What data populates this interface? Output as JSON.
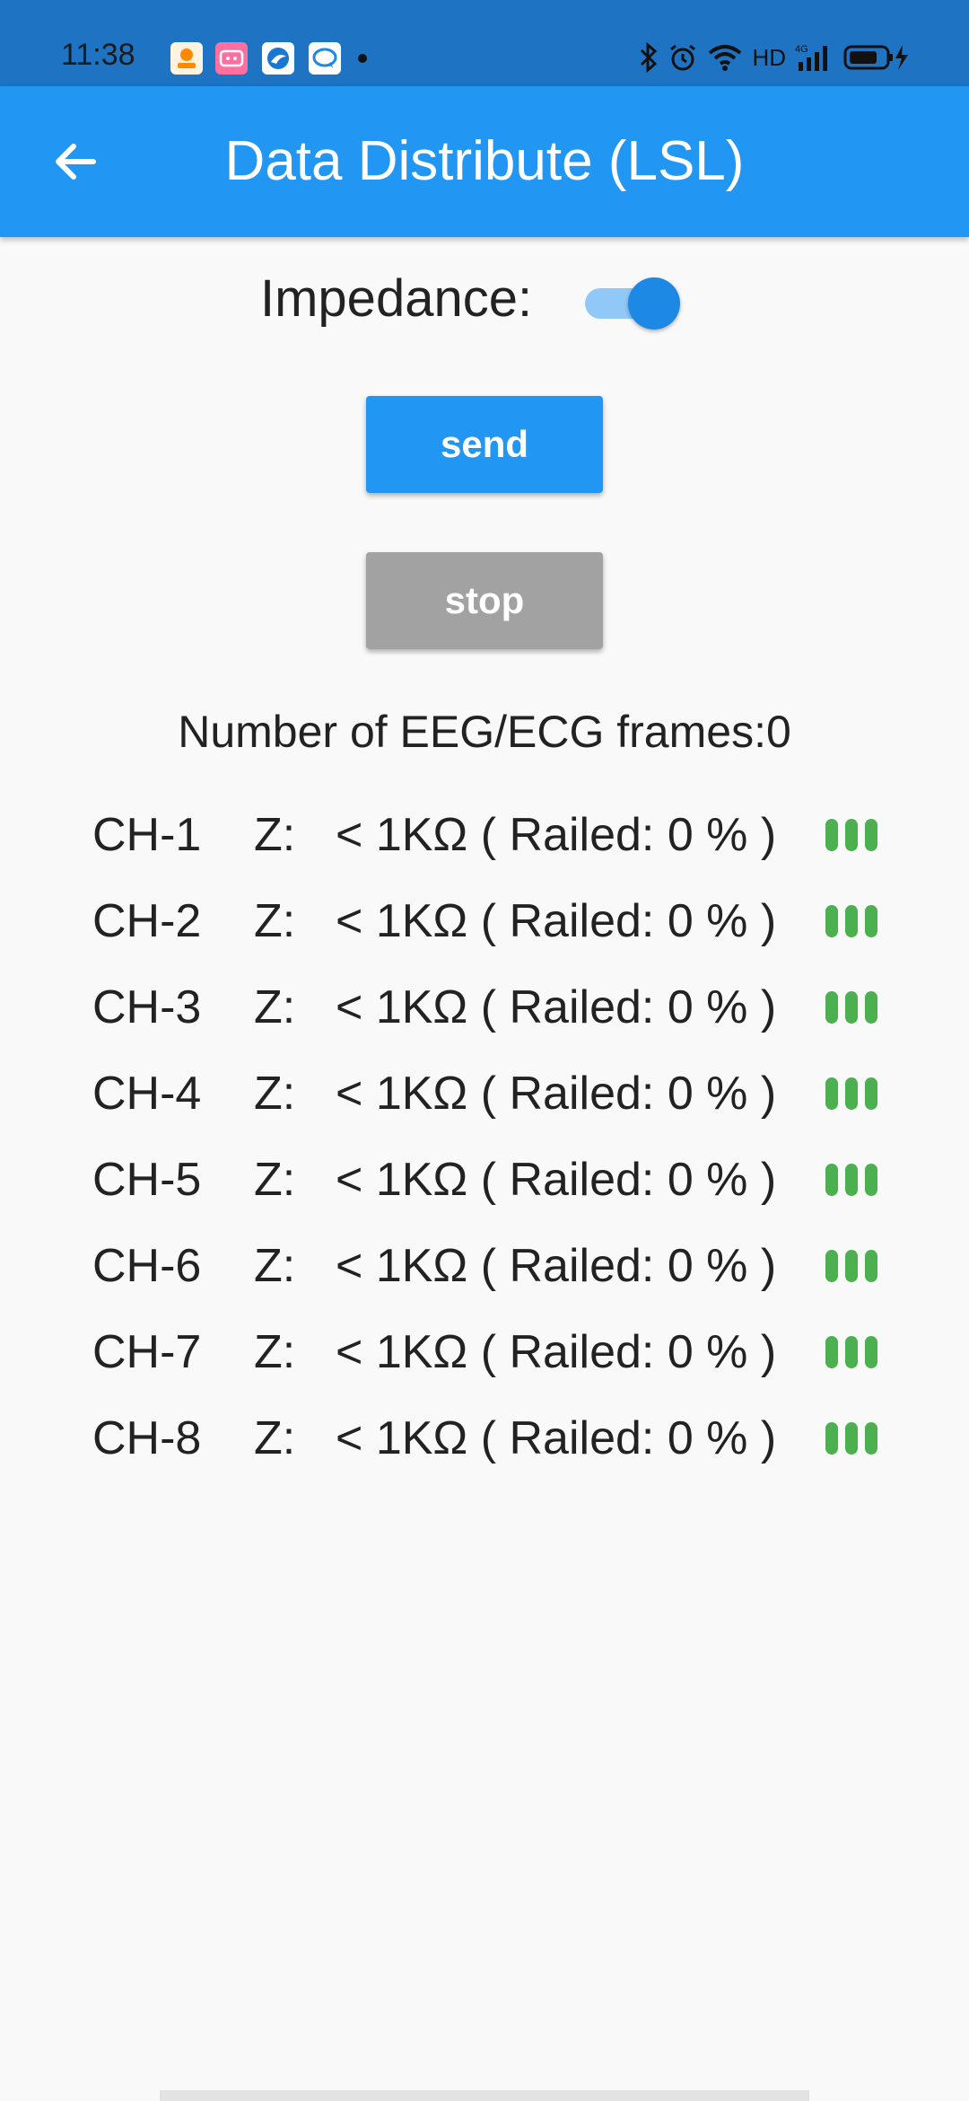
{
  "status_bar": {
    "time": "11:38",
    "network_label": "HD",
    "notification_icons": [
      "taobao-icon",
      "bilibili-icon",
      "browser-icon",
      "chat-icon"
    ],
    "system_icons": [
      "bluetooth-icon",
      "alarm-icon",
      "wifi-icon",
      "signal-4g-icon",
      "battery-charging-icon"
    ]
  },
  "app_bar": {
    "title": "Data Distribute (LSL)",
    "back_icon": "arrow-back-icon",
    "color": "#2196f3"
  },
  "impedance": {
    "label": "Impedance:",
    "enabled": true
  },
  "buttons": {
    "send_label": "send",
    "stop_label": "stop",
    "send_color": "#2196f3",
    "stop_color": "#a2a2a2"
  },
  "frames_text": "Number of EEG/ECG frames:0",
  "channels": [
    {
      "name": "CH-1",
      "z_label": "Z:",
      "value": "< 1KΩ ( Railed: 0 % )",
      "signal_bars": 3
    },
    {
      "name": "CH-2",
      "z_label": "Z:",
      "value": "< 1KΩ ( Railed: 0 % )",
      "signal_bars": 3
    },
    {
      "name": "CH-3",
      "z_label": "Z:",
      "value": "< 1KΩ ( Railed: 0 % )",
      "signal_bars": 3
    },
    {
      "name": "CH-4",
      "z_label": "Z:",
      "value": "< 1KΩ ( Railed: 0 % )",
      "signal_bars": 3
    },
    {
      "name": "CH-5",
      "z_label": "Z:",
      "value": "< 1KΩ ( Railed: 0 % )",
      "signal_bars": 3
    },
    {
      "name": "CH-6",
      "z_label": "Z:",
      "value": "< 1KΩ ( Railed: 0 % )",
      "signal_bars": 3
    },
    {
      "name": "CH-7",
      "z_label": "Z:",
      "value": "< 1KΩ ( Railed: 0 % )",
      "signal_bars": 3
    },
    {
      "name": "CH-8",
      "z_label": "Z:",
      "value": "< 1KΩ ( Railed: 0 % )",
      "signal_bars": 3
    }
  ],
  "signal_color": "#4caf50"
}
